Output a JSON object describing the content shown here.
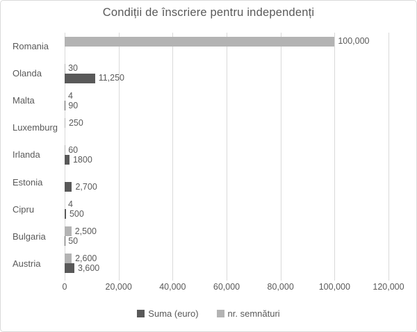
{
  "chart_data": {
    "type": "bar",
    "orientation": "horizontal",
    "title": "Condiții de înscriere pentru independenți",
    "categories": [
      "Romania",
      "Olanda",
      "Malta",
      "Luxemburg",
      "Irlanda",
      "Estonia",
      "Cipru",
      "Bulgaria",
      "Austria"
    ],
    "series": [
      {
        "name": "Suma (euro)",
        "color": "#595959",
        "values": [
          null,
          11250,
          90,
          null,
          1800,
          2700,
          500,
          50,
          3600
        ],
        "labels": [
          "",
          "11,250",
          "90",
          "",
          "1800",
          "2,700",
          "500",
          "50",
          "3,600"
        ]
      },
      {
        "name": "nr. semnături",
        "color": "#b3b3b3",
        "values": [
          100000,
          30,
          4,
          250,
          60,
          null,
          4,
          2500,
          2600
        ],
        "labels": [
          "100,000",
          "30",
          "4",
          "250",
          "60",
          "",
          "4",
          "2,500",
          "2,600"
        ]
      }
    ],
    "series_display_order_top_to_bottom": [
      "nr. semnături",
      "Suma (euro)"
    ],
    "xlim": [
      0,
      120000
    ],
    "xticks": [
      0,
      20000,
      40000,
      60000,
      80000,
      100000,
      120000
    ],
    "xtick_labels": [
      "0",
      "20,000",
      "40,000",
      "60,000",
      "80,000",
      "100,000",
      "120,000"
    ],
    "grid": "vertical",
    "gridline_color": "#d9d9d9",
    "legend_position": "bottom",
    "text_color": "#595959",
    "background_color": "#ffffff"
  },
  "legend": {
    "items": [
      {
        "label": "Suma (euro)",
        "color": "#595959"
      },
      {
        "label": "nr. semnături",
        "color": "#b3b3b3"
      }
    ]
  }
}
